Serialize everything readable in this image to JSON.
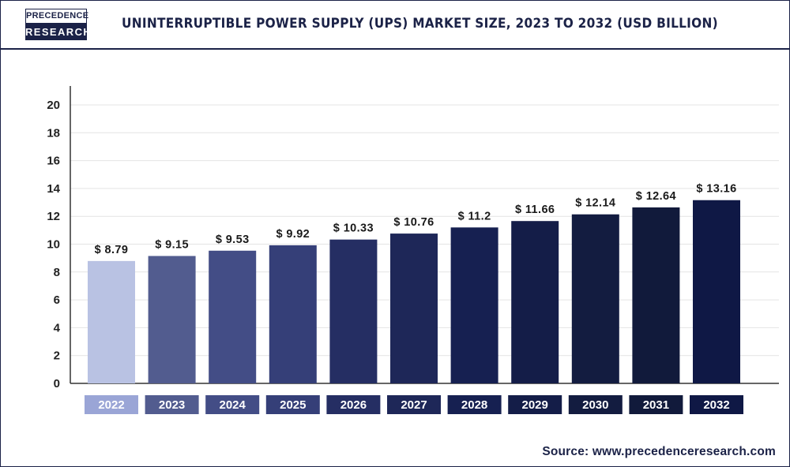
{
  "header": {
    "logo_top": "PRECEDENCE",
    "logo_bottom": "RESEARCH",
    "title": "UNINTERRUPTIBLE POWER SUPPLY (UPS) MARKET SIZE, 2023 TO 2032 (USD BILLION)"
  },
  "source": "Source: www.precedenceresearch.com",
  "chart_data": {
    "type": "bar",
    "title": "UNINTERRUPTIBLE POWER SUPPLY (UPS) MARKET SIZE, 2023 TO 2032 (USD BILLION)",
    "xlabel": "",
    "ylabel": "",
    "categories": [
      "2022",
      "2023",
      "2024",
      "2025",
      "2026",
      "2027",
      "2028",
      "2029",
      "2030",
      "2031",
      "2032"
    ],
    "values": [
      8.79,
      9.15,
      9.53,
      9.92,
      10.33,
      10.76,
      11.2,
      11.66,
      12.14,
      12.64,
      13.16
    ],
    "data_labels": [
      "$ 8.79",
      "$ 9.15",
      "$ 9.53",
      "$ 9.92",
      "$ 10.33",
      "$ 10.76",
      "$ 11.2",
      "$ 11.66",
      "$ 12.14",
      "$ 12.64",
      "$ 13.16"
    ],
    "yticks": [
      0,
      2,
      4,
      6,
      8,
      10,
      12,
      14,
      16,
      18,
      20
    ],
    "ylim": [
      0,
      20
    ],
    "grid": true,
    "legend": "none",
    "bar_colors": [
      "#b9c2e3",
      "#525c8f",
      "#434d86",
      "#353f78",
      "#252e63",
      "#1e2758",
      "#162051",
      "#141d48",
      "#131c40",
      "#111a3b",
      "#0f1845"
    ],
    "label_box_colors": [
      "#9aa5d6",
      "#525c8f",
      "#434d86",
      "#353f78",
      "#252e63",
      "#1e2758",
      "#162051",
      "#141d48",
      "#131c40",
      "#111a3b",
      "#0f1845"
    ]
  }
}
